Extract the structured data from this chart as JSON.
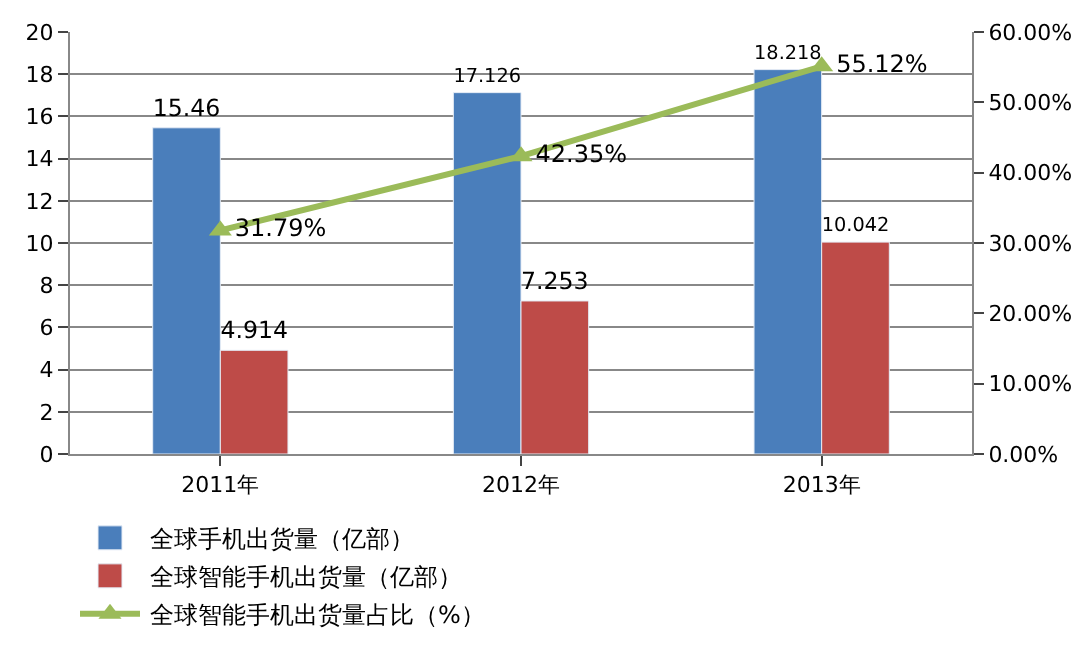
{
  "chart_data": {
    "type": "bar",
    "categories": [
      "2011年",
      "2012年",
      "2013年"
    ],
    "series": [
      {
        "name": "全球手机出货量（亿部）",
        "color": "#4a7ebb",
        "values": [
          15.46,
          17.126,
          18.218
        ],
        "value_labels": [
          "15.46",
          "17.126",
          "18.218"
        ]
      },
      {
        "name": "全球智能手机出货量（亿部）",
        "color": "#be4b48",
        "values": [
          4.914,
          7.253,
          10.042
        ],
        "value_labels": [
          "4.914",
          "7.253",
          "10.042"
        ]
      },
      {
        "name": "全球智能手机出货量占比（%）",
        "type": "line",
        "axis": "y2",
        "color": "#9bbb59",
        "marker": "triangle",
        "values": [
          31.79,
          42.35,
          55.12
        ],
        "value_labels": [
          "31.79%",
          "42.35%",
          "55.12%"
        ]
      }
    ],
    "ylim": [
      0,
      20
    ],
    "yticks": [
      0,
      2,
      4,
      6,
      8,
      10,
      12,
      14,
      16,
      18,
      20
    ],
    "y2lim": [
      0,
      60
    ],
    "y2ticks": [
      {
        "value": 0,
        "label": "0.00%"
      },
      {
        "value": 10,
        "label": "10.00%"
      },
      {
        "value": 20,
        "label": "20.00%"
      },
      {
        "value": 30,
        "label": "30.00%"
      },
      {
        "value": 40,
        "label": "40.00%"
      },
      {
        "value": 50,
        "label": "50.00%"
      },
      {
        "value": 60,
        "label": "60.00%"
      }
    ],
    "grid": "y",
    "legend": "bottom"
  }
}
